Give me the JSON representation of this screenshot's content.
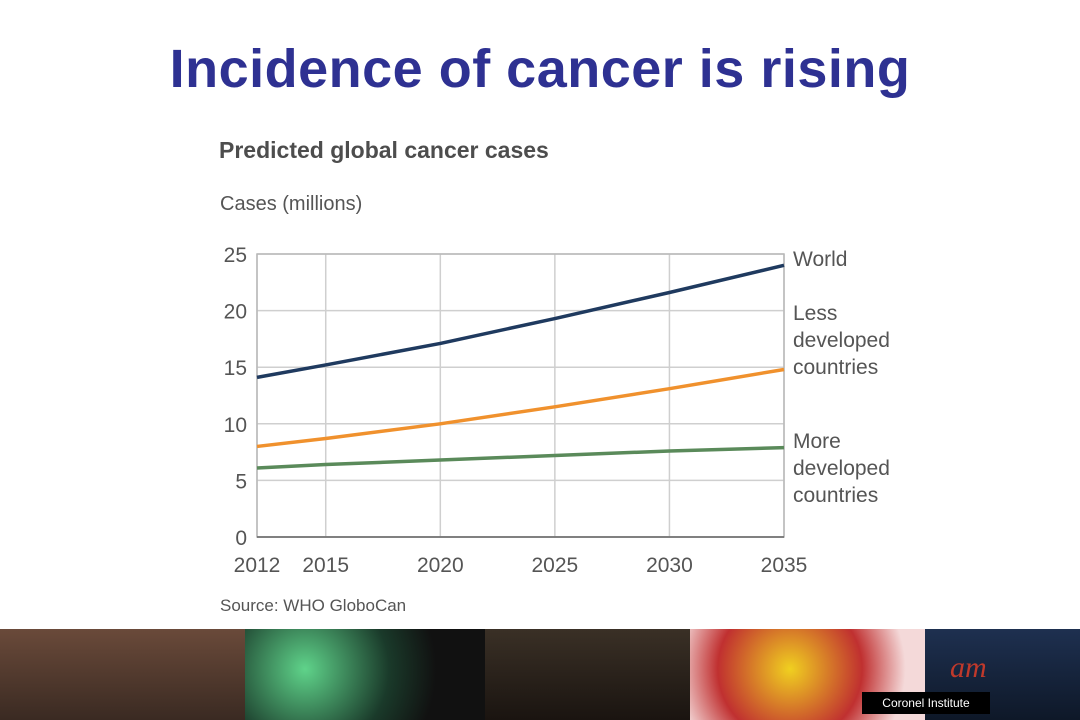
{
  "slide": {
    "title": "Incidence of cancer is rising"
  },
  "chart_data": {
    "type": "line",
    "title": "Predicted global cancer cases",
    "ylabel": "Cases (millions)",
    "xlabel": "",
    "source": "Source: WHO GloboCan",
    "x": [
      2012,
      2015,
      2020,
      2025,
      2030,
      2035
    ],
    "xlim": [
      2012,
      2035
    ],
    "ylim": [
      0,
      25
    ],
    "yticks": [
      0,
      5,
      10,
      15,
      20,
      25
    ],
    "grid": true,
    "series": [
      {
        "name": "World",
        "label_lines": [
          "World"
        ],
        "color": "#1f3a5f",
        "values": [
          14.1,
          15.2,
          17.1,
          19.3,
          21.6,
          24.0
        ]
      },
      {
        "name": "Less developed countries",
        "label_lines": [
          "Less",
          "developed",
          "countries"
        ],
        "color": "#f0912d",
        "values": [
          8.0,
          8.7,
          10.0,
          11.5,
          13.1,
          14.8
        ]
      },
      {
        "name": "More developed countries",
        "label_lines": [
          "More",
          "developed",
          "countries"
        ],
        "color": "#5a8a5a",
        "values": [
          6.1,
          6.4,
          6.8,
          7.2,
          7.6,
          7.9
        ]
      }
    ]
  },
  "footer": {
    "credit": "Coronel Institute",
    "logo_text": "am"
  }
}
